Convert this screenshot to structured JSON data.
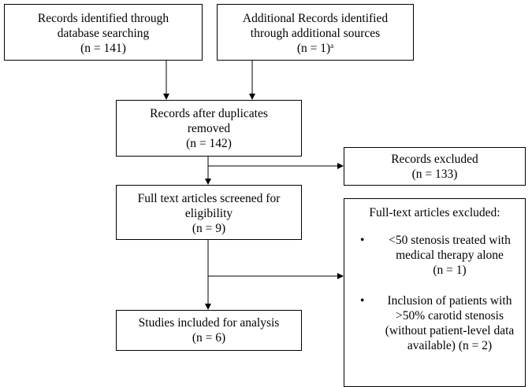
{
  "boxes": {
    "identified_db": {
      "lines": [
        "Records identified through",
        "database searching",
        "(n = 141)"
      ]
    },
    "identified_additional": {
      "lines": [
        "Additional Records identified",
        "through additional sources",
        "(n = 1)"
      ],
      "superscript": "a"
    },
    "after_duplicates": {
      "lines": [
        "Records after duplicates",
        "removed",
        "(n = 142)"
      ]
    },
    "records_excluded": {
      "lines": [
        "Records excluded",
        "(n = 133)"
      ]
    },
    "full_text_screened": {
      "lines": [
        "Full text articles screened for",
        "eligibility",
        "(n = 9)"
      ]
    },
    "included": {
      "lines": [
        "Studies included for analysis",
        "(n = 6)"
      ]
    },
    "full_text_excluded": {
      "heading": "Full-text articles excluded:",
      "bullet": "•",
      "items": [
        {
          "lines": [
            "<50 stenosis treated with",
            "medical therapy alone",
            "(n = 1)"
          ]
        },
        {
          "lines": [
            "Inclusion of patients with",
            ">50% carotid stenosis",
            "(without patient-level data",
            "available) (n = 2)"
          ]
        }
      ]
    }
  }
}
